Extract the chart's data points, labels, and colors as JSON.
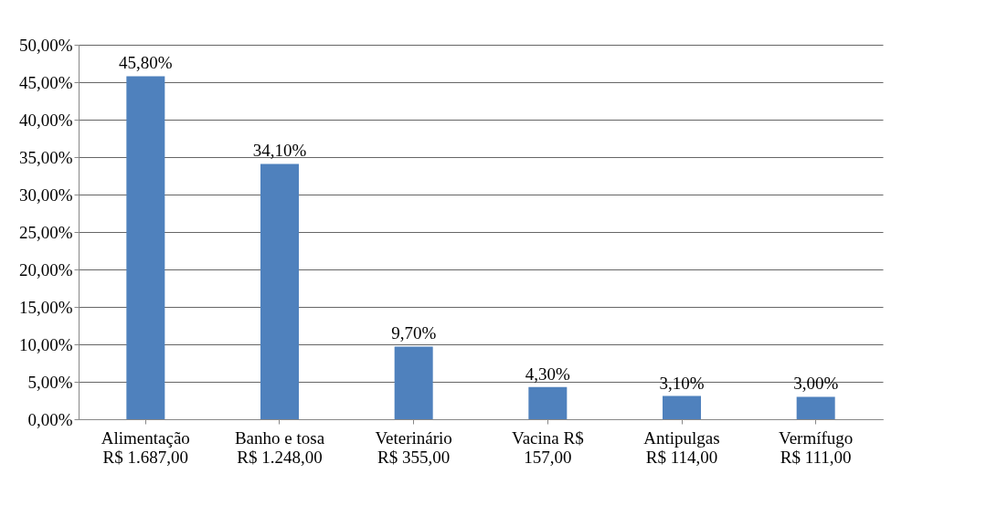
{
  "chart_data": {
    "type": "bar",
    "categories": [
      "Alimentação\nR$ 1.687,00",
      "Banho e tosa\nR$ 1.248,00",
      "Veterinário\nR$ 355,00",
      "Vacina R$\n157,00",
      "Antipulgas\nR$ 114,00",
      "Vermífugo\nR$ 111,00"
    ],
    "values": [
      45.8,
      34.1,
      9.7,
      4.3,
      3.1,
      3.0
    ],
    "value_labels": [
      "45,80%",
      "34,10%",
      "9,70%",
      "4,30%",
      "3,10%",
      "3,00%"
    ],
    "color": "#4f81bd",
    "ylim": [
      0,
      50
    ],
    "yticks": [
      {
        "value": 0,
        "label": "0,00%"
      },
      {
        "value": 5,
        "label": "5,00%"
      },
      {
        "value": 10,
        "label": "10,00%"
      },
      {
        "value": 15,
        "label": "15,00%"
      },
      {
        "value": 20,
        "label": "20,00%"
      },
      {
        "value": 25,
        "label": "25,00%"
      },
      {
        "value": 30,
        "label": "30,00%"
      },
      {
        "value": 35,
        "label": "35,00%"
      },
      {
        "value": 40,
        "label": "40,00%"
      },
      {
        "value": 45,
        "label": "45,00%"
      },
      {
        "value": 50,
        "label": "50,00%"
      }
    ],
    "grid": true
  }
}
